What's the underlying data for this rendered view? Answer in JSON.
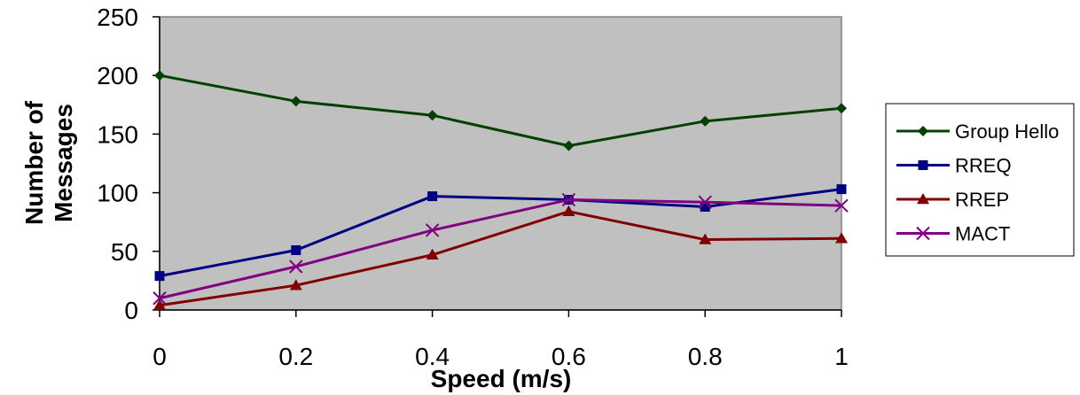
{
  "chart_data": {
    "type": "line",
    "title": "",
    "xlabel": "Speed (m/s)",
    "ylabel": [
      "Number of",
      "Messages"
    ],
    "x": [
      0,
      0.2,
      0.4,
      0.6,
      0.8,
      1
    ],
    "x_tick_labels": [
      "0",
      "0.2",
      "0.4",
      "0.6",
      "0.8",
      "1"
    ],
    "xlim": [
      0,
      1
    ],
    "ylim": [
      0,
      250
    ],
    "y_ticks": [
      0,
      50,
      100,
      150,
      200,
      250
    ],
    "y_tick_labels": [
      "0",
      "50",
      "100",
      "150",
      "200",
      "250"
    ],
    "grid": false,
    "plot_background": "#C0C0C0",
    "legend_position": "right",
    "series": [
      {
        "name": "Group Hello",
        "color": "#004000",
        "marker": "diamond",
        "values": [
          200,
          178,
          166,
          140,
          161,
          172
        ]
      },
      {
        "name": "RREQ",
        "color": "#000080",
        "marker": "square",
        "values": [
          29,
          51,
          97,
          94,
          88,
          103
        ]
      },
      {
        "name": "RREP",
        "color": "#800000",
        "marker": "triangle",
        "values": [
          4,
          21,
          47,
          84,
          60,
          61
        ]
      },
      {
        "name": "MACT",
        "color": "#800080",
        "marker": "x",
        "values": [
          10,
          37,
          68,
          94,
          92,
          89
        ]
      }
    ]
  }
}
